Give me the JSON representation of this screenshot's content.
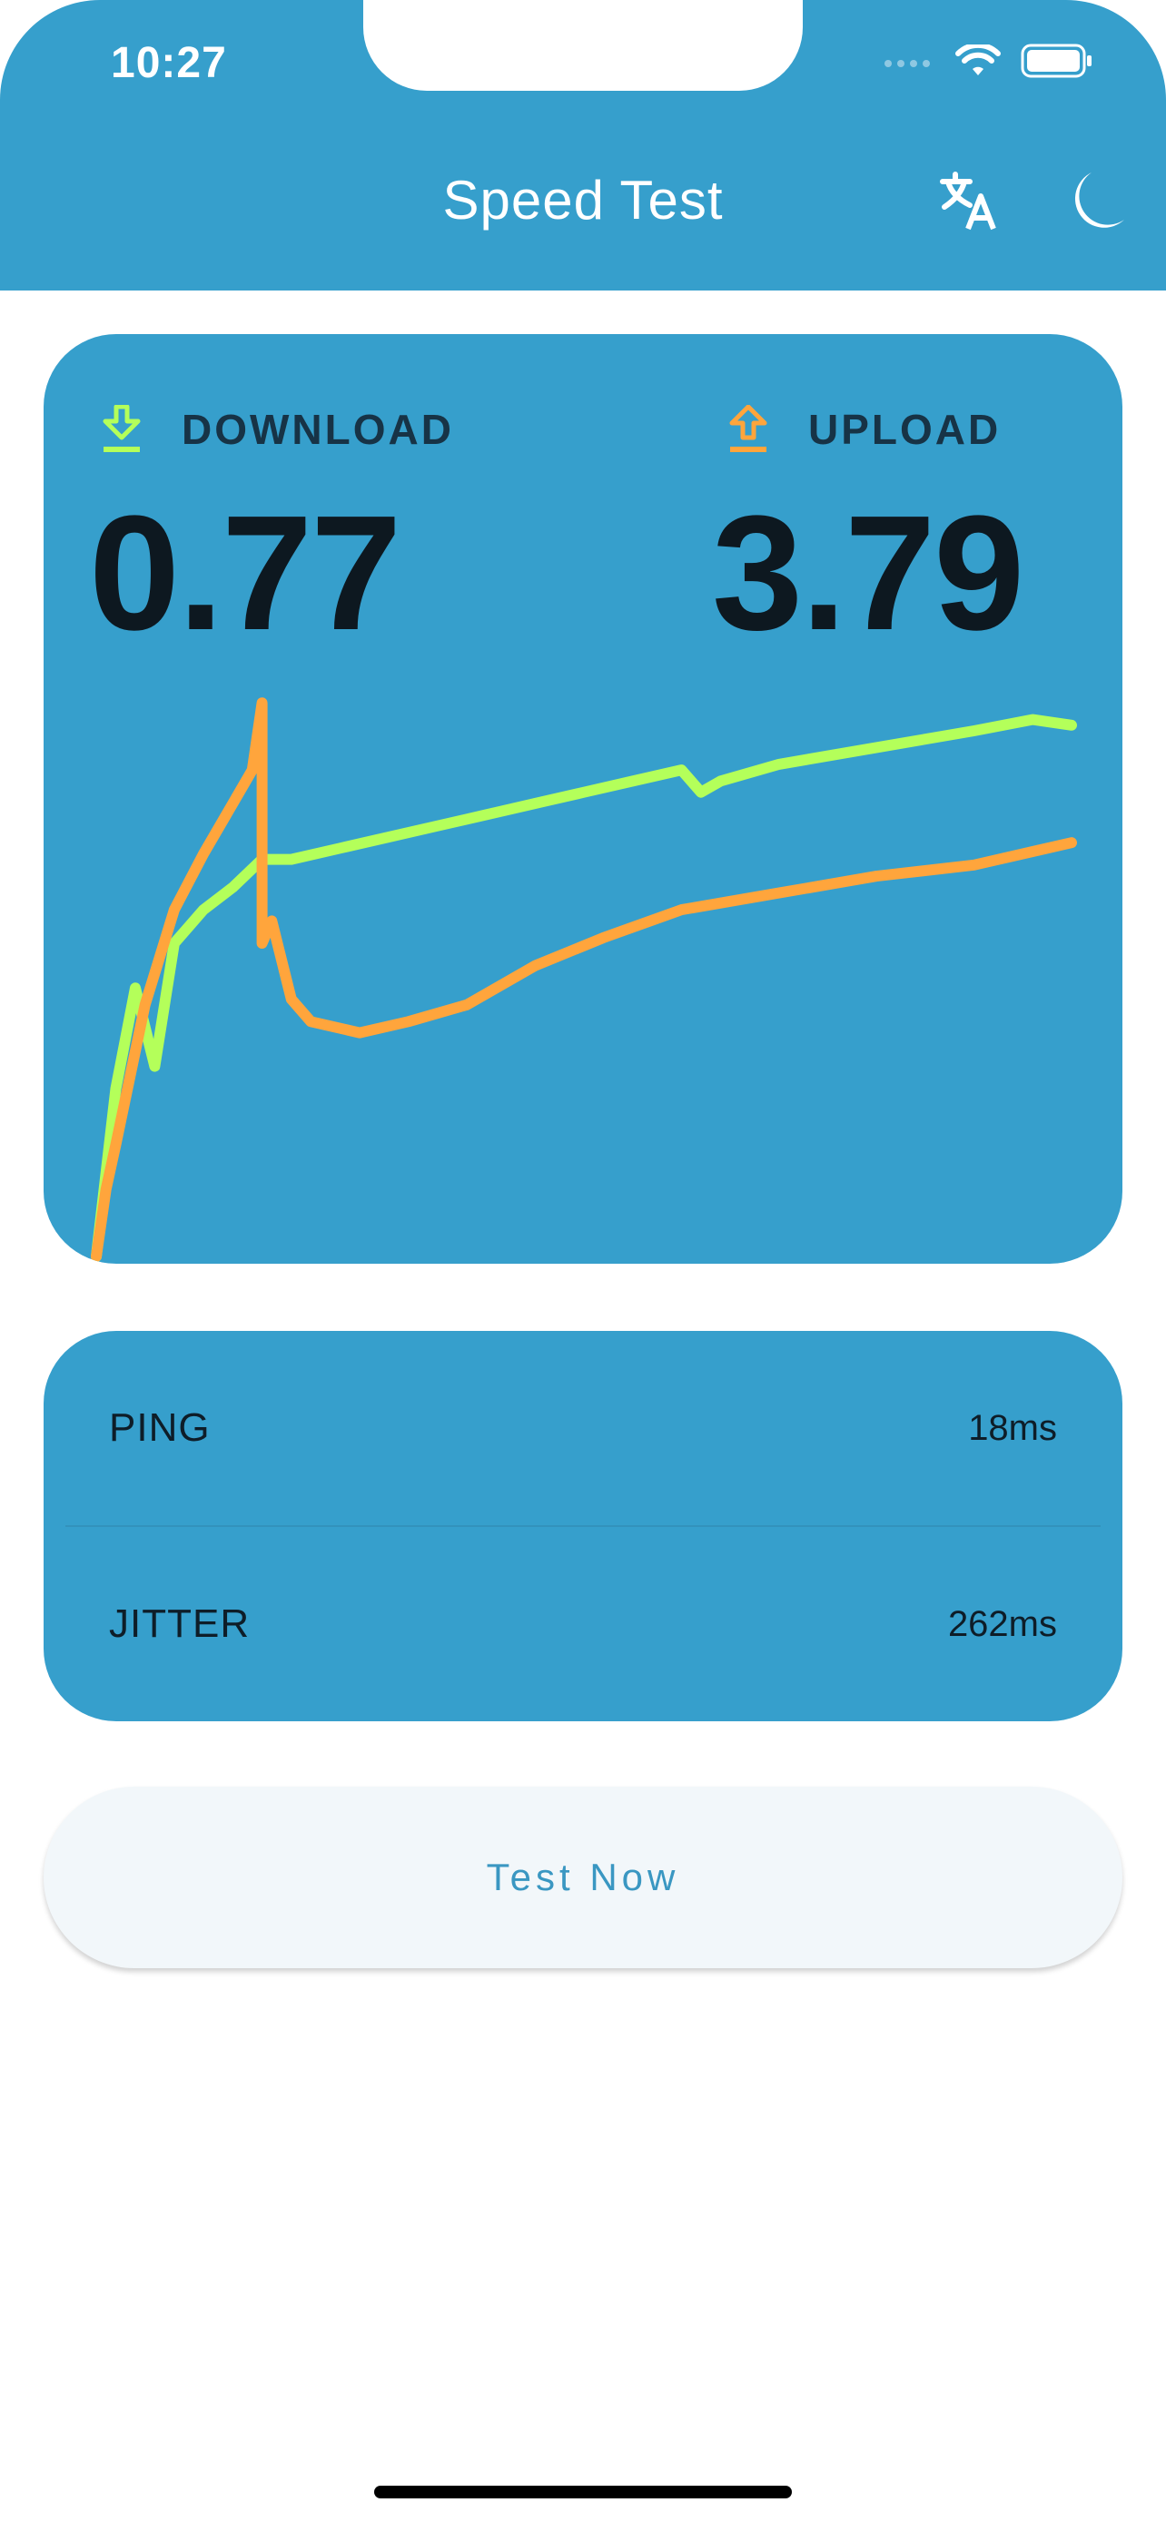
{
  "status_bar": {
    "time": "10:27"
  },
  "header": {
    "title": "Speed Test",
    "translate_icon": "translate-icon",
    "theme_icon": "moon-icon"
  },
  "speed": {
    "download_label": "DOWNLOAD",
    "download_value": "0.77",
    "download_color": "#b4ff5a",
    "upload_label": "UPLOAD",
    "upload_value": "3.79",
    "upload_color": "#ffa53c"
  },
  "stats": {
    "ping_label": "PING",
    "ping_value": "18ms",
    "jitter_label": "JITTER",
    "jitter_value": "262ms"
  },
  "actions": {
    "test_label": "Test Now"
  },
  "chart_data": {
    "type": "line",
    "title": "",
    "xlabel": "",
    "ylabel": "",
    "grid": false,
    "series": [
      {
        "color": "#b4ff5a",
        "x": [
          0,
          0.02,
          0.04,
          0.06,
          0.08,
          0.11,
          0.14,
          0.17,
          0.2,
          0.25,
          0.3,
          0.35,
          0.4,
          0.45,
          0.5,
          0.55,
          0.6,
          0.62,
          0.64,
          0.7,
          0.8,
          0.9,
          0.96,
          1.0
        ],
        "y": [
          0.0,
          0.3,
          0.48,
          0.34,
          0.56,
          0.62,
          0.66,
          0.71,
          0.71,
          0.73,
          0.75,
          0.77,
          0.79,
          0.81,
          0.83,
          0.85,
          0.87,
          0.83,
          0.85,
          0.88,
          0.91,
          0.94,
          0.96,
          0.95
        ]
      },
      {
        "color": "#ffa53c",
        "x": [
          0,
          0.01,
          0.02,
          0.05,
          0.08,
          0.11,
          0.14,
          0.16,
          0.17,
          0.17,
          0.18,
          0.2,
          0.22,
          0.27,
          0.32,
          0.38,
          0.45,
          0.52,
          0.6,
          0.7,
          0.8,
          0.9,
          1.0
        ],
        "y": [
          0.0,
          0.12,
          0.2,
          0.45,
          0.62,
          0.72,
          0.81,
          0.87,
          0.99,
          0.56,
          0.6,
          0.46,
          0.42,
          0.4,
          0.42,
          0.45,
          0.52,
          0.57,
          0.62,
          0.65,
          0.68,
          0.7,
          0.74
        ]
      }
    ]
  }
}
